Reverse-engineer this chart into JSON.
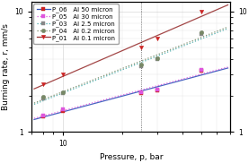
{
  "xlabel": "Pressure, p, bar",
  "ylabel": "Burning rate, r, mm/s",
  "series": [
    {
      "label": "P_06   Al 50 micron",
      "line_color": "#3355bb",
      "marker_color": "#cc2222",
      "marker": "s",
      "linestyle": "-",
      "x": [
        8,
        10,
        25,
        30,
        50
      ],
      "y": [
        1.35,
        1.5,
        2.1,
        2.2,
        3.2
      ]
    },
    {
      "label": "P_05   Al 30 micron",
      "line_color": "#dd55dd",
      "marker_color": "#dd55dd",
      "marker": "s",
      "linestyle": ":",
      "x": [
        8,
        10,
        25,
        30,
        50
      ],
      "y": [
        1.38,
        1.53,
        2.15,
        2.25,
        3.25
      ]
    },
    {
      "label": "P_03   Al 2.5 micron",
      "line_color": "#44aaaa",
      "marker_color": "#888888",
      "marker": "s",
      "linestyle": ":",
      "x": [
        8,
        10,
        25,
        30,
        50
      ],
      "y": [
        1.9,
        2.1,
        3.5,
        4.0,
        6.5
      ]
    },
    {
      "label": "P_04   Al 0.2 micron",
      "line_color": "#778866",
      "marker_color": "#778866",
      "marker": "o",
      "linestyle": ":",
      "x": [
        8,
        10,
        25,
        30,
        50
      ],
      "y": [
        1.95,
        2.15,
        3.6,
        4.1,
        6.7
      ]
    },
    {
      "label": "P_01   Al 0.1 micron",
      "line_color": "#993333",
      "marker_color": "#cc2222",
      "marker": "v",
      "linestyle": "-",
      "x": [
        8,
        10,
        25,
        30,
        50
      ],
      "y": [
        2.5,
        3.0,
        5.0,
        6.0,
        10.0
      ]
    }
  ],
  "vline_x": 25,
  "xlim": [
    7,
    70
  ],
  "ylim": [
    1.0,
    12
  ],
  "background_color": "#ffffff",
  "legend_fontsize": 5.0,
  "axis_fontsize": 6.5,
  "tick_fontsize": 5.5
}
